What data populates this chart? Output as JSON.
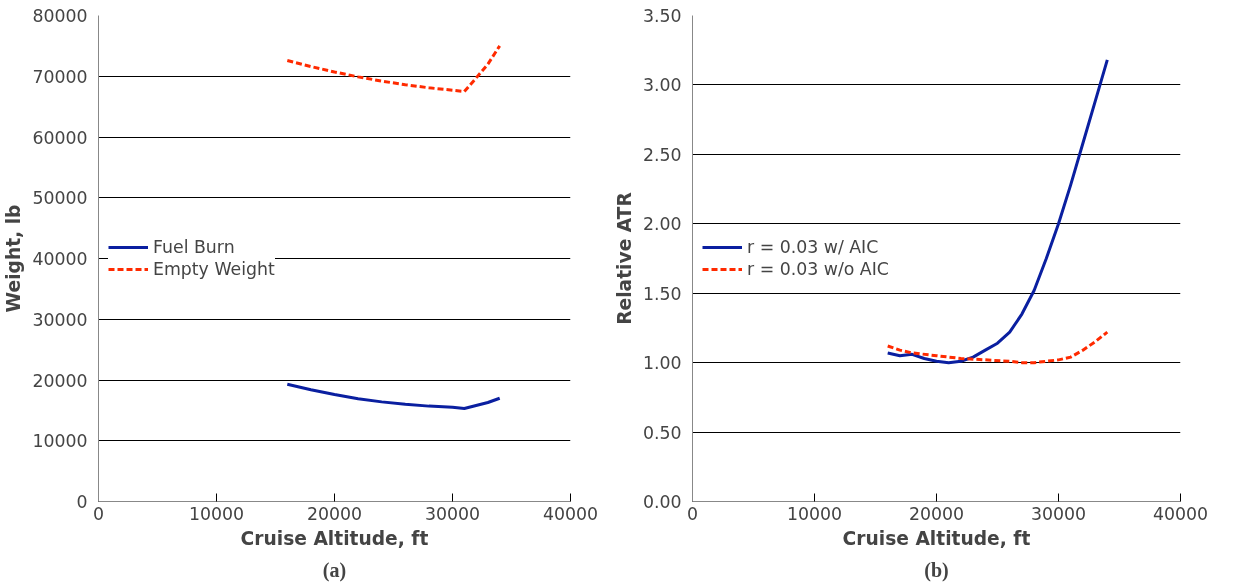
{
  "chart_data": [
    {
      "type": "line",
      "xlabel": "Cruise Altitude, ft",
      "ylabel": "Weight, lb",
      "annotations": [
        "(a)"
      ],
      "xlim": [
        0,
        40000
      ],
      "xticks": [
        0,
        10000,
        20000,
        30000,
        40000
      ],
      "ylim": [
        0,
        80000
      ],
      "yticks": [
        0,
        10000,
        20000,
        30000,
        40000,
        50000,
        60000,
        70000,
        80000
      ],
      "grid": "y",
      "legend": "left",
      "series": [
        {
          "name": "Fuel Burn",
          "color": "#0a1fa0",
          "line_style": "solid",
          "x": [
            16000,
            18000,
            20000,
            22000,
            24000,
            26000,
            28000,
            30000,
            31000,
            32000,
            33000,
            34000
          ],
          "values": [
            19300,
            18400,
            17600,
            16900,
            16400,
            16000,
            15700,
            15500,
            15300,
            15800,
            16300,
            17000
          ]
        },
        {
          "name": "Empty Weight",
          "color": "#ff2a00",
          "line_style": "dashed",
          "x": [
            16000,
            18000,
            20000,
            22000,
            24000,
            26000,
            28000,
            30000,
            31000,
            32000,
            33000,
            34000
          ],
          "values": [
            72600,
            71600,
            70700,
            69900,
            69200,
            68600,
            68100,
            67700,
            67500,
            69700,
            72000,
            75000
          ]
        }
      ]
    },
    {
      "type": "line",
      "xlabel": "Cruise Altitude, ft",
      "ylabel": "Relative ATR",
      "annotations": [
        "(b)"
      ],
      "xlim": [
        0,
        40000
      ],
      "xticks": [
        0,
        10000,
        20000,
        30000,
        40000
      ],
      "ylim": [
        0,
        3.5
      ],
      "yticks": [
        {
          "value": 0,
          "label": "0.00"
        },
        {
          "value": 0.5,
          "label": "0.50"
        },
        {
          "value": 1,
          "label": "1.00"
        },
        {
          "value": 1.5,
          "label": "1.50"
        },
        {
          "value": 2,
          "label": "2.00"
        },
        {
          "value": 2.5,
          "label": "2.50"
        },
        {
          "value": 3,
          "label": "3.00"
        },
        {
          "value": 3.5,
          "label": "3.50"
        }
      ],
      "grid": "y",
      "legend": "left",
      "series": [
        {
          "name": "r = 0.03 w/ AIC",
          "color": "#0a1fa0",
          "line_style": "solid",
          "x": [
            16000,
            17000,
            18000,
            19000,
            20000,
            21000,
            22000,
            23000,
            24000,
            25000,
            26000,
            27000,
            28000,
            29000,
            30000,
            31000,
            32000,
            33000,
            34000
          ],
          "values": [
            1.07,
            1.05,
            1.06,
            1.03,
            1.01,
            1.0,
            1.01,
            1.04,
            1.09,
            1.14,
            1.22,
            1.35,
            1.52,
            1.75,
            2.0,
            2.28,
            2.58,
            2.88,
            3.18
          ]
        },
        {
          "name": "r = 0.03 w/o AIC",
          "color": "#ff2a00",
          "line_style": "dashed",
          "x": [
            16000,
            17000,
            18000,
            20000,
            22000,
            24000,
            26000,
            27000,
            28000,
            30000,
            31000,
            32000,
            33000,
            34000
          ],
          "values": [
            1.12,
            1.09,
            1.07,
            1.05,
            1.03,
            1.02,
            1.01,
            1.0,
            1.0,
            1.02,
            1.04,
            1.09,
            1.15,
            1.22
          ]
        }
      ]
    }
  ]
}
